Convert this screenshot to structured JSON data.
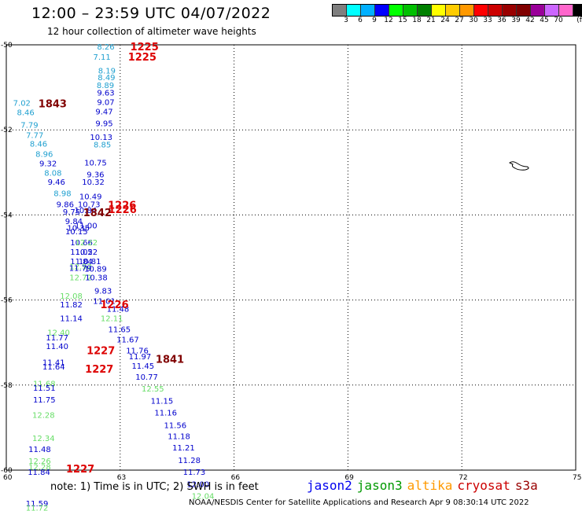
{
  "header": {
    "title": "12:00 – 23:59 UTC 04/07/2022",
    "subtitle": "12 hour collection of altimeter wave heights"
  },
  "colorbar": {
    "colors": [
      "#7f7f7f",
      "#00ffff",
      "#00b0ff",
      "#0000ff",
      "#00ff00",
      "#00c000",
      "#008000",
      "#ffff00",
      "#ffcc00",
      "#ff9900",
      "#ff0000",
      "#cc0000",
      "#990000",
      "#800000",
      "#990099",
      "#cc66ff",
      "#ff66cc",
      "#000000"
    ],
    "labels": [
      "3",
      "6",
      "9",
      "12",
      "15",
      "18",
      "21",
      "24",
      "27",
      "30",
      "33",
      "36",
      "39",
      "42",
      "45",
      "70",
      "(ft)"
    ]
  },
  "axes": {
    "y_labels": [
      "-50",
      "-52",
      "-54",
      "-56",
      "-58",
      "-60"
    ],
    "x_labels": [
      "60",
      "63",
      "66",
      "69",
      "72",
      "75"
    ]
  },
  "series_colors": {
    "jason2": "#0000cc",
    "jason3": "#009900",
    "altika": "#ff9900",
    "cryosat": "#990000",
    "s3a": "#cc0000",
    "lt_blue": "#20a0d0",
    "lt_green": "#66dd66",
    "label_red": "#dd0000",
    "label_dred": "#800000"
  },
  "chart_data": {
    "type": "scatter",
    "xlabel": "",
    "ylabel": "",
    "xlim": [
      60,
      75
    ],
    "ylim": [
      -60,
      -50
    ],
    "points": [
      {
        "lon": 62.62,
        "lat": -50.04,
        "text": "8.26",
        "c": "lt_blue"
      },
      {
        "lon": 62.52,
        "lat": -50.28,
        "text": "7.11",
        "c": "lt_blue"
      },
      {
        "lon": 62.65,
        "lat": -50.6,
        "text": "8.19",
        "c": "lt_blue"
      },
      {
        "lon": 62.64,
        "lat": -50.76,
        "text": "8.49",
        "c": "lt_blue"
      },
      {
        "lon": 62.61,
        "lat": -50.94,
        "text": "8.89",
        "c": "lt_blue"
      },
      {
        "lon": 62.62,
        "lat": -51.12,
        "text": "9.63",
        "c": "jason2"
      },
      {
        "lon": 62.62,
        "lat": -51.34,
        "text": "9.07",
        "c": "jason2"
      },
      {
        "lon": 62.58,
        "lat": -51.56,
        "text": "9.47",
        "c": "jason2"
      },
      {
        "lon": 62.58,
        "lat": -51.84,
        "text": "9.95",
        "c": "jason2"
      },
      {
        "lon": 62.5,
        "lat": -52.16,
        "text": "10.13",
        "c": "jason2"
      },
      {
        "lon": 62.53,
        "lat": -52.34,
        "text": "8.85",
        "c": "lt_blue"
      },
      {
        "lon": 60.41,
        "lat": -51.36,
        "text": "7.02",
        "c": "lt_blue"
      },
      {
        "lon": 60.51,
        "lat": -51.58,
        "text": "8.46",
        "c": "lt_blue"
      },
      {
        "lon": 60.61,
        "lat": -51.88,
        "text": "7.79",
        "c": "lt_blue"
      },
      {
        "lon": 60.75,
        "lat": -52.12,
        "text": "7.77",
        "c": "lt_blue"
      },
      {
        "lon": 60.85,
        "lat": -52.32,
        "text": "8.46",
        "c": "lt_blue"
      },
      {
        "lon": 61.0,
        "lat": -52.56,
        "text": "8.96",
        "c": "lt_blue"
      },
      {
        "lon": 61.1,
        "lat": -52.78,
        "text": "9.32",
        "c": "jason2"
      },
      {
        "lon": 61.23,
        "lat": -53.0,
        "text": "8.08",
        "c": "lt_blue"
      },
      {
        "lon": 61.32,
        "lat": -53.22,
        "text": "9.46",
        "c": "jason2"
      },
      {
        "lon": 61.48,
        "lat": -53.48,
        "text": "8.98",
        "c": "lt_blue"
      },
      {
        "lon": 61.55,
        "lat": -53.74,
        "text": "9.86",
        "c": "jason2"
      },
      {
        "lon": 61.72,
        "lat": -53.92,
        "text": "9.75",
        "c": "jason2"
      },
      {
        "lon": 62.35,
        "lat": -52.76,
        "text": "10.75",
        "c": "jason2"
      },
      {
        "lon": 62.35,
        "lat": -53.04,
        "text": "9.36",
        "c": "jason2"
      },
      {
        "lon": 62.29,
        "lat": -53.22,
        "text": "10.32",
        "c": "jason2"
      },
      {
        "lon": 62.22,
        "lat": -53.56,
        "text": "10.49",
        "c": "jason2"
      },
      {
        "lon": 62.18,
        "lat": -53.74,
        "text": "10.73",
        "c": "jason2"
      },
      {
        "lon": 62.09,
        "lat": -53.88,
        "text": "10.84",
        "c": "jason2"
      },
      {
        "lon": 61.78,
        "lat": -54.14,
        "text": "9.84",
        "c": "jason2"
      },
      {
        "lon": 62.1,
        "lat": -54.24,
        "text": "11.00",
        "c": "jason2"
      },
      {
        "lon": 61.9,
        "lat": -54.3,
        "text": "10.35",
        "c": "jason2"
      },
      {
        "lon": 61.85,
        "lat": -54.38,
        "text": "10.15",
        "c": "jason2"
      },
      {
        "lon": 61.98,
        "lat": -54.64,
        "text": "10.66",
        "c": "jason2"
      },
      {
        "lon": 62.11,
        "lat": -54.64,
        "text": "12.22",
        "c": "lt_green"
      },
      {
        "lon": 61.98,
        "lat": -54.86,
        "text": "11.02",
        "c": "jason2"
      },
      {
        "lon": 62.11,
        "lat": -54.86,
        "text": "10.52",
        "c": "jason2"
      },
      {
        "lon": 62.2,
        "lat": -55.08,
        "text": "10.81",
        "c": "jason2"
      },
      {
        "lon": 61.98,
        "lat": -55.08,
        "text": "11.84",
        "c": "jason2"
      },
      {
        "lon": 61.96,
        "lat": -55.2,
        "text": "12.92",
        "c": "lt_green"
      },
      {
        "lon": 61.95,
        "lat": -55.24,
        "text": "11.79",
        "c": "jason2"
      },
      {
        "lon": 62.35,
        "lat": -55.26,
        "text": "10.89",
        "c": "jason2"
      },
      {
        "lon": 61.96,
        "lat": -55.46,
        "text": "12.72",
        "c": "lt_green"
      },
      {
        "lon": 62.37,
        "lat": -55.46,
        "text": "10.38",
        "c": "jason2"
      },
      {
        "lon": 62.55,
        "lat": -55.78,
        "text": "9.83",
        "c": "jason2"
      },
      {
        "lon": 61.71,
        "lat": -55.9,
        "text": "12.08",
        "c": "lt_green"
      },
      {
        "lon": 62.58,
        "lat": -56.02,
        "text": "11.01",
        "c": "jason2"
      },
      {
        "lon": 61.71,
        "lat": -56.1,
        "text": "11.82",
        "c": "jason2"
      },
      {
        "lon": 62.94,
        "lat": -56.2,
        "text": "11.48",
        "c": "jason2"
      },
      {
        "lon": 61.71,
        "lat": -56.42,
        "text": "11.14",
        "c": "jason2"
      },
      {
        "lon": 62.78,
        "lat": -56.42,
        "text": "12.11",
        "c": "lt_green"
      },
      {
        "lon": 62.98,
        "lat": -56.68,
        "text": "11.65",
        "c": "jason2"
      },
      {
        "lon": 61.38,
        "lat": -56.76,
        "text": "12.40",
        "c": "lt_green"
      },
      {
        "lon": 61.34,
        "lat": -56.88,
        "text": "11.77",
        "c": "jason2"
      },
      {
        "lon": 63.2,
        "lat": -56.92,
        "text": "11.67",
        "c": "jason2"
      },
      {
        "lon": 61.34,
        "lat": -57.08,
        "text": "11.40",
        "c": "jason2"
      },
      {
        "lon": 63.45,
        "lat": -57.18,
        "text": "11.76",
        "c": "jason2"
      },
      {
        "lon": 63.52,
        "lat": -57.32,
        "text": "11.97",
        "c": "jason2"
      },
      {
        "lon": 61.25,
        "lat": -57.46,
        "text": "11.41",
        "c": "jason2"
      },
      {
        "lon": 61.25,
        "lat": -57.56,
        "text": "11.64",
        "c": "jason2"
      },
      {
        "lon": 63.6,
        "lat": -57.54,
        "text": "11.45",
        "c": "jason2"
      },
      {
        "lon": 63.7,
        "lat": -57.8,
        "text": "10.77",
        "c": "jason2"
      },
      {
        "lon": 61.0,
        "lat": -57.96,
        "text": "11.68",
        "c": "lt_green"
      },
      {
        "lon": 61.0,
        "lat": -58.06,
        "text": "11.51",
        "c": "jason2"
      },
      {
        "lon": 63.86,
        "lat": -58.08,
        "text": "12.55",
        "c": "lt_green"
      },
      {
        "lon": 61.0,
        "lat": -58.34,
        "text": "11.75",
        "c": "jason2"
      },
      {
        "lon": 64.1,
        "lat": -58.36,
        "text": "11.15",
        "c": "jason2"
      },
      {
        "lon": 64.2,
        "lat": -58.64,
        "text": "11.16",
        "c": "jason2"
      },
      {
        "lon": 60.98,
        "lat": -58.7,
        "text": "12.28",
        "c": "lt_green"
      },
      {
        "lon": 64.45,
        "lat": -58.94,
        "text": "11.56",
        "c": "jason2"
      },
      {
        "lon": 64.55,
        "lat": -59.2,
        "text": "11.18",
        "c": "jason2"
      },
      {
        "lon": 60.98,
        "lat": -59.24,
        "text": "12.34",
        "c": "lt_green"
      },
      {
        "lon": 64.67,
        "lat": -59.46,
        "text": "11.21",
        "c": "jason2"
      },
      {
        "lon": 60.88,
        "lat": -59.5,
        "text": "11.48",
        "c": "jason2"
      },
      {
        "lon": 64.82,
        "lat": -59.76,
        "text": "11.28",
        "c": "jason2"
      },
      {
        "lon": 60.88,
        "lat": -59.78,
        "text": "12.26",
        "c": "lt_green"
      },
      {
        "lon": 60.88,
        "lat": -59.92,
        "text": "12.28",
        "c": "lt_green"
      },
      {
        "lon": 60.86,
        "lat": -60.04,
        "text": "11.84",
        "c": "jason2"
      },
      {
        "lon": 64.95,
        "lat": -60.04,
        "text": "11.73",
        "c": "jason2"
      },
      {
        "lon": 65.05,
        "lat": -60.32,
        "text": "12.00",
        "c": "jason2"
      },
      {
        "lon": 65.18,
        "lat": -60.6,
        "text": "12.04",
        "c": "lt_green"
      },
      {
        "lon": 60.81,
        "lat": -60.78,
        "text": "11.59",
        "c": "jason2"
      },
      {
        "lon": 60.81,
        "lat": -60.88,
        "text": "11.72",
        "c": "lt_green"
      }
    ],
    "time_labels": [
      {
        "lon": 63.64,
        "lat": -50.04,
        "text": "1225",
        "c": "label_red"
      },
      {
        "lon": 63.58,
        "lat": -50.28,
        "text": "1225",
        "c": "label_red"
      },
      {
        "lon": 61.22,
        "lat": -51.38,
        "text": "1843",
        "c": "label_dred"
      },
      {
        "lon": 63.05,
        "lat": -53.76,
        "text": "1226",
        "c": "label_red"
      },
      {
        "lon": 63.06,
        "lat": -53.86,
        "text": "1226",
        "c": "label_red"
      },
      {
        "lon": 62.4,
        "lat": -53.94,
        "text": "1842",
        "c": "label_dred"
      },
      {
        "lon": 62.85,
        "lat": -56.1,
        "text": "1226",
        "c": "label_red"
      },
      {
        "lon": 62.49,
        "lat": -57.18,
        "text": "1227",
        "c": "label_red"
      },
      {
        "lon": 62.45,
        "lat": -57.62,
        "text": "1227",
        "c": "label_red"
      },
      {
        "lon": 64.31,
        "lat": -57.38,
        "text": "1841",
        "c": "label_dred"
      },
      {
        "lon": 61.95,
        "lat": -59.96,
        "text": "1227",
        "c": "label_red"
      }
    ]
  },
  "footer": {
    "note": "note:  1) Time is in UTC;  2) SWH is in feet",
    "satellites": [
      {
        "name": "jason2",
        "color": "#0000ee"
      },
      {
        "name": "jason3",
        "color": "#009900"
      },
      {
        "name": "altika",
        "color": "#ff9900"
      },
      {
        "name": "cryosat",
        "color": "#cc0000"
      },
      {
        "name": "s3a",
        "color": "#990000"
      }
    ],
    "credit": "NOAA/NESDIS Center for Satellite Applications and Research    Apr  9 08:30:14 UTC 2022"
  }
}
